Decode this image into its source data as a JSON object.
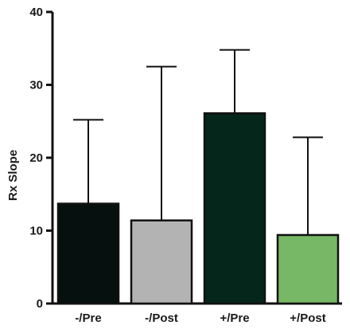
{
  "chart_data": {
    "type": "bar",
    "categories": [
      "-/Pre",
      "-/Post",
      "+/Pre",
      "+/Post"
    ],
    "values": [
      13.7,
      11.4,
      26.1,
      9.4
    ],
    "error_upper": [
      25.2,
      32.5,
      34.8,
      22.8
    ],
    "ylabel": "Rx Slope",
    "xlabel": "",
    "ylim": [
      0,
      40
    ],
    "yticks": [
      0,
      10,
      20,
      30,
      40
    ],
    "colors": [
      "#06110f",
      "#b3b3b3",
      "#05261a",
      "#77b866"
    ],
    "grid": false,
    "legend": "none"
  }
}
